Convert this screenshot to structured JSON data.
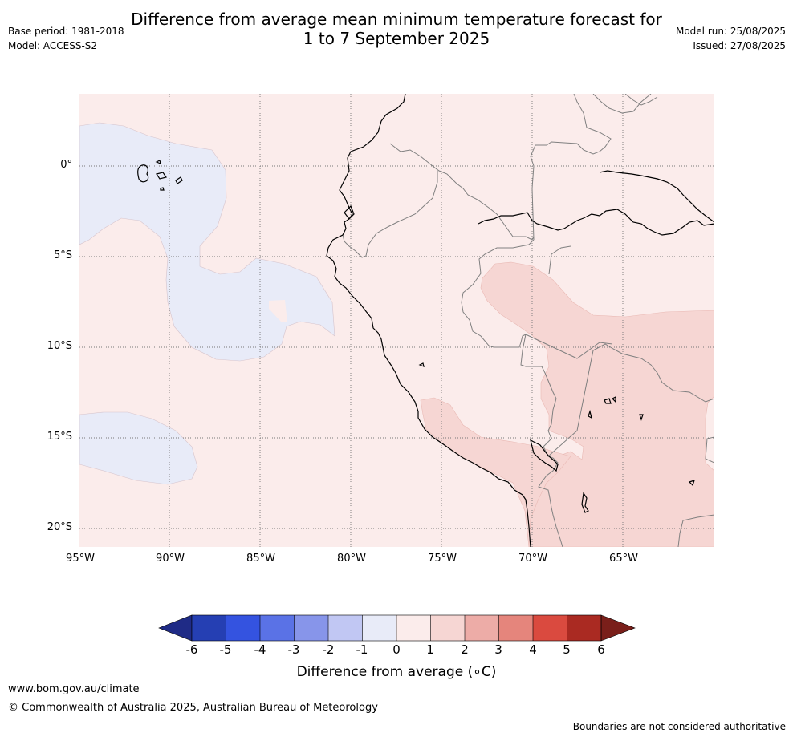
{
  "title": {
    "line1": "Difference from average mean minimum temperature forecast for",
    "line2": "1 to 7 September 2025"
  },
  "meta": {
    "base_period": "Base period: 1981-2018",
    "model": "Model: ACCESS-S2",
    "model_run": "Model run: 25/08/2025",
    "issued": "Issued: 27/08/2025"
  },
  "map": {
    "lat_labels": [
      "0°",
      "5°S",
      "10°S",
      "15°S",
      "20°S"
    ],
    "lon_labels": [
      "95°W",
      "90°W",
      "85°W",
      "80°W",
      "75°W",
      "70°W",
      "65°W"
    ],
    "colors": {
      "anom_0_1": "#fbeceb",
      "anom_1_2": "#f6d6d3",
      "anom_m1_0": "#e8ebf8",
      "coast": "#000000",
      "border": "#808080"
    }
  },
  "colorbar": {
    "ticks": [
      "-6",
      "-5",
      "-4",
      "-3",
      "-2",
      "-1",
      "0",
      "1",
      "2",
      "3",
      "4",
      "5",
      "6"
    ],
    "colors": [
      "#1f2b86",
      "#253fb3",
      "#3453e0",
      "#5a72e6",
      "#8795ea",
      "#c1c7f3",
      "#e8ebf8",
      "#fbeceb",
      "#f6d6d3",
      "#edaca7",
      "#e5857c",
      "#da4a3f",
      "#aa2a22",
      "#7a1f1a"
    ],
    "label": "Difference from average (∘C)"
  },
  "footer": {
    "url": "www.bom.gov.au/climate",
    "copyright": "© Commonwealth of Australia 2025, Australian Bureau of Meteorology",
    "disclaimer": "Boundaries are not considered authoritative"
  }
}
